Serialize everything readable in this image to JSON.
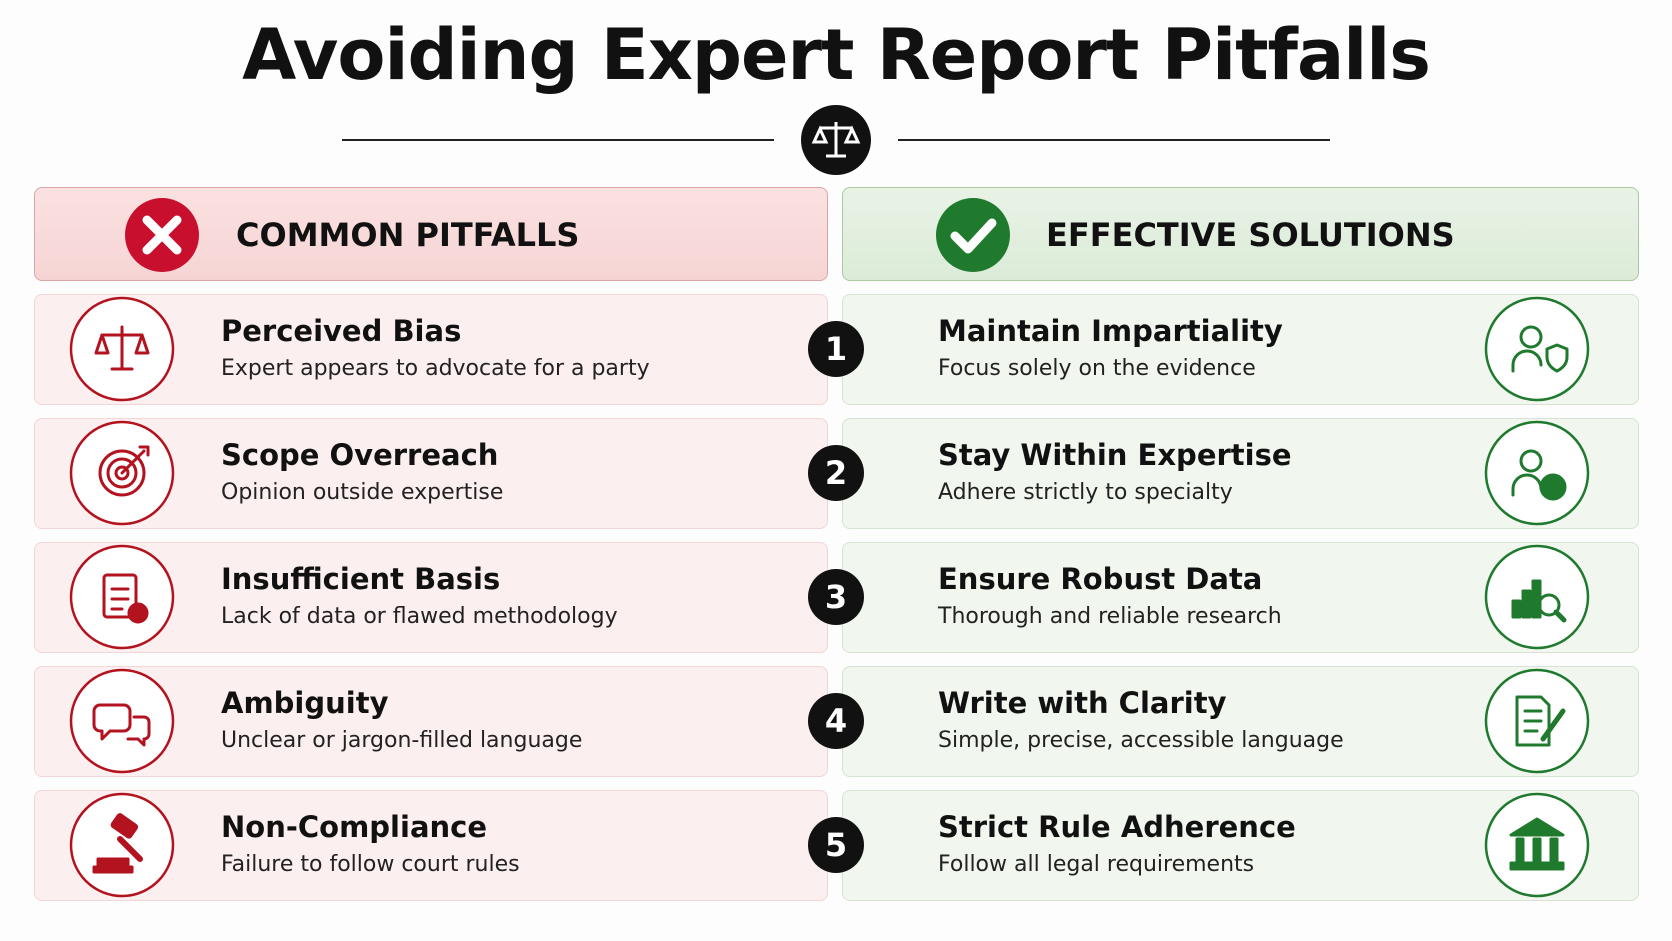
{
  "header": {
    "title": "Avoiding Expert Report Pitfalls"
  },
  "columns": {
    "left": "COMMON PITFALLS",
    "right": "EFFECTIVE SOLUTIONS"
  },
  "rows": [
    {
      "number": 1,
      "pitfall": {
        "title": "Perceived Bias",
        "description": "Expert appears to advocate for a party"
      },
      "solution": {
        "title": "Maintain Impartiality",
        "description": "Focus solely on the evidence"
      }
    },
    {
      "number": 2,
      "pitfall": {
        "title": "Scope Overreach",
        "description": "Opinion outside expertise"
      },
      "solution": {
        "title": "Stay Within Expertise",
        "description": "Adhere strictly to specialty"
      }
    },
    {
      "number": 3,
      "pitfall": {
        "title": "Insufficient Basis",
        "description": "Lack of data or flawed methodology"
      },
      "solution": {
        "title": "Ensure Robust Data",
        "description": "Thorough and reliable research"
      }
    },
    {
      "number": 4,
      "pitfall": {
        "title": "Ambiguity",
        "description": "Unclear or jargon-filled language"
      },
      "solution": {
        "title": "Write with Clarity",
        "description": "Simple, precise, accessible language"
      }
    },
    {
      "number": 5,
      "pitfall": {
        "title": "Non-Compliance",
        "description": "Failure to follow court rules"
      },
      "solution": {
        "title": "Strict Rule Adherence",
        "description": "Follow all legal requirements"
      }
    }
  ]
}
